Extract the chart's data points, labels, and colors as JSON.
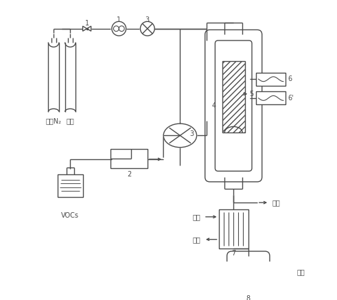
{
  "background_color": "#ffffff",
  "line_color": "#4a4a4a",
  "figure_size": [
    4.91,
    4.37
  ],
  "dpi": 100,
  "labels": {
    "gas1": "高纯N₂",
    "gas2": "空气",
    "vocs": "VOCs",
    "jiance": "检测",
    "chushui": "出水",
    "jinshui": "进水",
    "fangkong": "放空",
    "num1": "1",
    "num2": "2",
    "num3_top": "3",
    "num3_mid": "3",
    "num4": "4",
    "num5": "5",
    "num6": "6",
    "num6p": "6'",
    "num7": "7",
    "num8": "8"
  }
}
